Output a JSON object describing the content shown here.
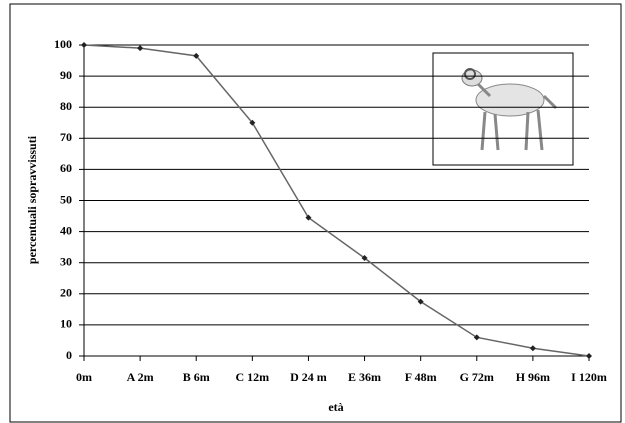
{
  "chart_data": {
    "type": "line",
    "x_label": "età",
    "y_label": "percentuali sopravvissuti",
    "categories": [
      "0m",
      "A 2m",
      "B 6m",
      "C 12m",
      "D 24 m",
      "E 36m",
      "F 48m",
      "G 72m",
      "H 96m",
      "I 120m"
    ],
    "values": [
      100,
      99,
      96.5,
      75,
      44.5,
      31.5,
      17.5,
      6,
      2.5,
      0
    ],
    "color": "#666666",
    "ylim": [
      0,
      100
    ],
    "yticks": [
      0,
      10,
      20,
      30,
      40,
      50,
      60,
      70,
      80,
      90,
      100
    ],
    "grid": true
  }
}
